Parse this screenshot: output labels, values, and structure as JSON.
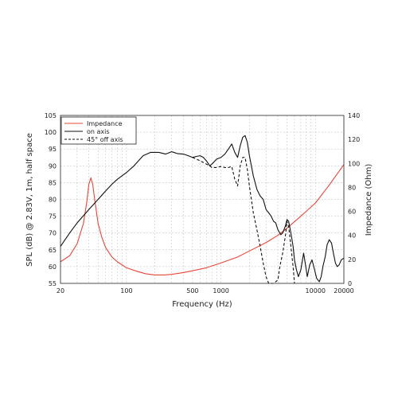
{
  "chart_data": {
    "type": "line",
    "xlabel": "Frequency (Hz)",
    "ylabel_left": "SPL (dB) @ 2.83V, 1m, half space",
    "ylabel_right": "Impedance (Ohm)",
    "x_scale": "log",
    "xlim": [
      20,
      20000
    ],
    "ylim_left": [
      55,
      105
    ],
    "ylim_right": [
      0,
      140
    ],
    "grid": true,
    "legend_position": "top-left",
    "x_tick_labels": [
      "20",
      "100",
      "500",
      "1000",
      "10000",
      "20000"
    ],
    "x_tick_values": [
      20,
      100,
      500,
      1000,
      10000,
      20000
    ],
    "y_left_ticks": [
      55,
      60,
      65,
      70,
      75,
      80,
      85,
      90,
      95,
      100,
      105
    ],
    "y_right_ticks": [
      0,
      20,
      40,
      60,
      80,
      100,
      120,
      140
    ],
    "colors": {
      "impedance": "#e8463a",
      "on_axis": "#111111",
      "off_axis": "#111111"
    },
    "series": [
      {
        "name": "Impedance",
        "axis": "right",
        "style": "solid",
        "points": [
          [
            20,
            18
          ],
          [
            25,
            23
          ],
          [
            30,
            33
          ],
          [
            35,
            50
          ],
          [
            38,
            68
          ],
          [
            40,
            83
          ],
          [
            42,
            88
          ],
          [
            44,
            82
          ],
          [
            46,
            70
          ],
          [
            50,
            50
          ],
          [
            55,
            38
          ],
          [
            60,
            30
          ],
          [
            70,
            22
          ],
          [
            80,
            18
          ],
          [
            100,
            13
          ],
          [
            130,
            10
          ],
          [
            160,
            8
          ],
          [
            200,
            7
          ],
          [
            250,
            7
          ],
          [
            300,
            7.5
          ],
          [
            400,
            9
          ],
          [
            500,
            10.5
          ],
          [
            700,
            13
          ],
          [
            1000,
            17
          ],
          [
            1500,
            22
          ],
          [
            2000,
            27
          ],
          [
            3000,
            34
          ],
          [
            4000,
            40
          ],
          [
            5000,
            46
          ],
          [
            7000,
            56
          ],
          [
            10000,
            67
          ],
          [
            14000,
            82
          ],
          [
            20000,
            99
          ]
        ]
      },
      {
        "name": "on axis",
        "axis": "left",
        "style": "solid",
        "points": [
          [
            20,
            66
          ],
          [
            25,
            70
          ],
          [
            30,
            73
          ],
          [
            40,
            77
          ],
          [
            50,
            80
          ],
          [
            60,
            82.5
          ],
          [
            70,
            84.5
          ],
          [
            80,
            86
          ],
          [
            100,
            88
          ],
          [
            120,
            90
          ],
          [
            150,
            93
          ],
          [
            180,
            94
          ],
          [
            220,
            94
          ],
          [
            260,
            93.5
          ],
          [
            300,
            94.2
          ],
          [
            350,
            93.6
          ],
          [
            400,
            93.5
          ],
          [
            450,
            93
          ],
          [
            500,
            92.5
          ],
          [
            550,
            92.8
          ],
          [
            600,
            93
          ],
          [
            650,
            92.5
          ],
          [
            700,
            91.5
          ],
          [
            760,
            90
          ],
          [
            800,
            90.5
          ],
          [
            900,
            92
          ],
          [
            1000,
            92.5
          ],
          [
            1100,
            93.5
          ],
          [
            1200,
            95
          ],
          [
            1300,
            96.5
          ],
          [
            1400,
            94
          ],
          [
            1500,
            92.5
          ],
          [
            1600,
            96
          ],
          [
            1700,
            98.5
          ],
          [
            1800,
            99
          ],
          [
            1900,
            97
          ],
          [
            2000,
            93
          ],
          [
            2200,
            87
          ],
          [
            2400,
            83
          ],
          [
            2600,
            81
          ],
          [
            2800,
            80
          ],
          [
            3000,
            77
          ],
          [
            3200,
            76
          ],
          [
            3400,
            75
          ],
          [
            3600,
            73.5
          ],
          [
            3800,
            73
          ],
          [
            4000,
            71
          ],
          [
            4300,
            69.5
          ],
          [
            4500,
            70
          ],
          [
            4800,
            72
          ],
          [
            5000,
            74
          ],
          [
            5200,
            73.5
          ],
          [
            5500,
            70
          ],
          [
            5800,
            66
          ],
          [
            6000,
            62
          ],
          [
            6300,
            59
          ],
          [
            6600,
            57
          ],
          [
            7000,
            59
          ],
          [
            7500,
            64
          ],
          [
            7800,
            61
          ],
          [
            8200,
            57
          ],
          [
            8700,
            60.5
          ],
          [
            9200,
            62
          ],
          [
            9700,
            59.5
          ],
          [
            10300,
            56.5
          ],
          [
            11000,
            55.5
          ],
          [
            11500,
            57
          ],
          [
            12000,
            60
          ],
          [
            12700,
            63
          ],
          [
            13300,
            66.5
          ],
          [
            14000,
            68
          ],
          [
            14800,
            67
          ],
          [
            15500,
            64
          ],
          [
            16300,
            61
          ],
          [
            17000,
            60
          ],
          [
            17800,
            60.5
          ],
          [
            18800,
            62
          ],
          [
            20000,
            62.5
          ]
        ]
      },
      {
        "name": "45° off axis",
        "axis": "left",
        "style": "dashed",
        "points": [
          [
            500,
            92.5
          ],
          [
            550,
            92
          ],
          [
            600,
            91.5
          ],
          [
            650,
            91
          ],
          [
            700,
            90.5
          ],
          [
            760,
            90
          ],
          [
            800,
            89.5
          ],
          [
            900,
            89.5
          ],
          [
            1000,
            89.8
          ],
          [
            1100,
            89.5
          ],
          [
            1200,
            89.5
          ],
          [
            1300,
            89.8
          ],
          [
            1400,
            86
          ],
          [
            1500,
            84
          ],
          [
            1600,
            90
          ],
          [
            1700,
            92.5
          ],
          [
            1800,
            92.5
          ],
          [
            1900,
            89
          ],
          [
            2000,
            84
          ],
          [
            2200,
            76
          ],
          [
            2400,
            71
          ],
          [
            2600,
            66
          ],
          [
            2800,
            61
          ],
          [
            3000,
            57
          ],
          [
            3200,
            55
          ],
          [
            3600,
            55
          ],
          [
            4000,
            56
          ],
          [
            4200,
            60
          ],
          [
            4500,
            64
          ],
          [
            4800,
            69
          ],
          [
            5000,
            73.5
          ],
          [
            5200,
            72
          ],
          [
            5500,
            66
          ],
          [
            5800,
            60
          ],
          [
            6000,
            55
          ]
        ]
      }
    ]
  }
}
